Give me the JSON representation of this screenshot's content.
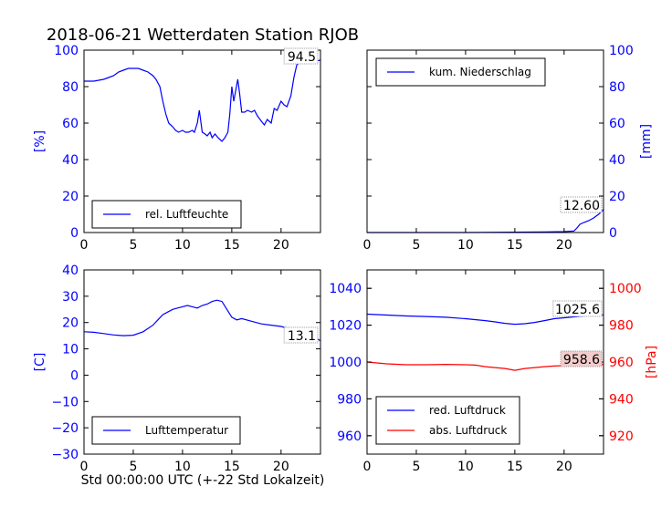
{
  "title": "2018-06-21 Wetterdaten Station RJOB",
  "xlabel": "Std 00:00:00 UTC (+-22 Std Lokalzeit)",
  "colors": {
    "blue": "#0000ff",
    "red": "#ff0000",
    "black": "#000000"
  },
  "chart_data": [
    {
      "type": "line",
      "id": "humidity",
      "ylabel": "[%]",
      "xlim": [
        0,
        24
      ],
      "ylim": [
        0,
        100
      ],
      "xticks": [
        "0",
        "5",
        "10",
        "15",
        "20"
      ],
      "yticks": [
        "0",
        "20",
        "40",
        "60",
        "80",
        "100"
      ],
      "legend": {
        "position": "lower-left",
        "entries": [
          "rel. Luftfeuchte"
        ]
      },
      "annotation": "94.5",
      "series": [
        {
          "name": "rel. Luftfeuchte",
          "color": "#0000ff",
          "x": [
            0,
            1,
            2,
            2.5,
            3,
            3.5,
            4,
            4.5,
            5,
            5.5,
            6,
            6.5,
            7,
            7.3,
            7.7,
            8,
            8.3,
            8.6,
            9,
            9.3,
            9.6,
            10,
            10.3,
            10.6,
            11,
            11.2,
            11.5,
            11.7,
            12,
            12.3,
            12.5,
            12.8,
            13,
            13.3,
            13.6,
            14,
            14.3,
            14.6,
            14.8,
            15,
            15.2,
            15.4,
            15.6,
            15.8,
            16,
            16.3,
            16.6,
            17,
            17.3,
            17.6,
            18,
            18.3,
            18.6,
            19,
            19.3,
            19.6,
            20,
            20.3,
            20.6,
            21,
            21.3,
            21.6,
            22,
            22.3,
            22.6,
            23,
            23.5,
            24
          ],
          "y": [
            83,
            83,
            84,
            85,
            86,
            88,
            89,
            90,
            90,
            90,
            89,
            88,
            86,
            84,
            80,
            72,
            65,
            60,
            58,
            56,
            55,
            56,
            55,
            55,
            56,
            55,
            60,
            67,
            55,
            54,
            53,
            55,
            52,
            54,
            52,
            50,
            52,
            55,
            65,
            80,
            72,
            78,
            84,
            76,
            66,
            66,
            67,
            66,
            67,
            64,
            61,
            59,
            62,
            60,
            68,
            67,
            72,
            70,
            69,
            75,
            85,
            92,
            94,
            94.5,
            94,
            94,
            94,
            94.5
          ]
        }
      ]
    },
    {
      "type": "line",
      "id": "precip",
      "ylabel": "[mm]",
      "xlim": [
        0,
        24
      ],
      "ylim": [
        0,
        100
      ],
      "xticks": [
        "0",
        "5",
        "10",
        "15",
        "20"
      ],
      "yticks": [
        "0",
        "20",
        "40",
        "60",
        "80",
        "100"
      ],
      "legend": {
        "position": "top-left",
        "entries": [
          "kum. Niederschlag"
        ]
      },
      "annotation": "12.60",
      "series": [
        {
          "name": "kum. Niederschlag",
          "color": "#0000ff",
          "x": [
            0,
            5,
            10,
            15,
            18,
            20,
            21,
            21.3,
            21.6,
            22,
            22.5,
            23,
            23.5,
            24
          ],
          "y": [
            0,
            0,
            0,
            0.2,
            0.3,
            0.5,
            0.8,
            2.5,
            4.5,
            5.5,
            6.5,
            8,
            10,
            12.6
          ]
        }
      ]
    },
    {
      "type": "line",
      "id": "temperature",
      "ylabel": "[C]",
      "xlim": [
        0,
        24
      ],
      "ylim": [
        -30,
        40
      ],
      "xticks": [
        "0",
        "5",
        "10",
        "15",
        "20"
      ],
      "yticks": [
        "−30",
        "−20",
        "−10",
        "0",
        "10",
        "20",
        "30",
        "40"
      ],
      "legend": {
        "position": "lower-left",
        "entries": [
          "Lufttemperatur"
        ]
      },
      "annotation": "13.1",
      "series": [
        {
          "name": "Lufttemperatur",
          "color": "#0000ff",
          "x": [
            0,
            1,
            2,
            3,
            4,
            5,
            6,
            7,
            7.5,
            8,
            8.5,
            9,
            9.5,
            10,
            10.5,
            11,
            11.5,
            12,
            12.5,
            13,
            13.5,
            14,
            14.5,
            15,
            15.5,
            16,
            17,
            18,
            19,
            20,
            21,
            22,
            22.5,
            23,
            23.5,
            24
          ],
          "y": [
            16.5,
            16.3,
            15.8,
            15.3,
            15,
            15.2,
            16.5,
            19,
            21,
            23,
            24,
            25,
            25.5,
            26,
            26.5,
            26,
            25.5,
            26.5,
            27,
            28,
            28.5,
            28,
            25,
            22,
            21,
            21.5,
            20.5,
            19.5,
            19,
            18.5,
            17.5,
            17,
            16,
            15,
            14,
            13.1
          ]
        }
      ]
    },
    {
      "type": "line",
      "id": "pressure",
      "ylabel": "[hPa]",
      "xlim": [
        0,
        24
      ],
      "ylim_left": [
        950,
        1050
      ],
      "ylim_right": [
        910,
        1010
      ],
      "xticks": [
        "0",
        "5",
        "10",
        "15",
        "20"
      ],
      "yticks_left": [
        "960",
        "980",
        "1000",
        "1020",
        "1040"
      ],
      "yticks_right": [
        "920",
        "940",
        "960",
        "980",
        "1000"
      ],
      "legend": {
        "position": "lower-left",
        "entries": [
          "red. Luftdruck",
          "abs. Luftdruck"
        ]
      },
      "annotations": [
        "1025.6",
        "958.6"
      ],
      "series": [
        {
          "name": "red. Luftdruck",
          "color": "#0000ff",
          "axis": "left",
          "x": [
            0,
            2,
            4,
            6,
            8,
            10,
            12,
            13,
            14,
            15,
            16,
            17,
            18,
            19,
            20,
            21,
            22,
            23,
            24
          ],
          "y": [
            1026,
            1025.5,
            1025,
            1024.7,
            1024.3,
            1023.5,
            1022.5,
            1021.8,
            1021,
            1020.5,
            1020.8,
            1021.5,
            1022.5,
            1023.5,
            1024,
            1024.5,
            1025,
            1025.3,
            1025.6
          ]
        },
        {
          "name": "abs. Luftdruck",
          "color": "#ff0000",
          "axis": "right",
          "x": [
            0,
            2,
            4,
            6,
            8,
            10,
            11,
            12,
            13,
            14,
            14.5,
            15,
            15.5,
            16,
            17,
            18,
            19,
            20,
            21,
            22,
            23,
            24
          ],
          "y": [
            960,
            959,
            958.5,
            958.5,
            958.7,
            958.5,
            958.3,
            957.5,
            957,
            956.5,
            956,
            955.5,
            956,
            956.5,
            957,
            957.5,
            957.8,
            958,
            958.3,
            958.4,
            958.5,
            958.6
          ]
        }
      ]
    }
  ]
}
